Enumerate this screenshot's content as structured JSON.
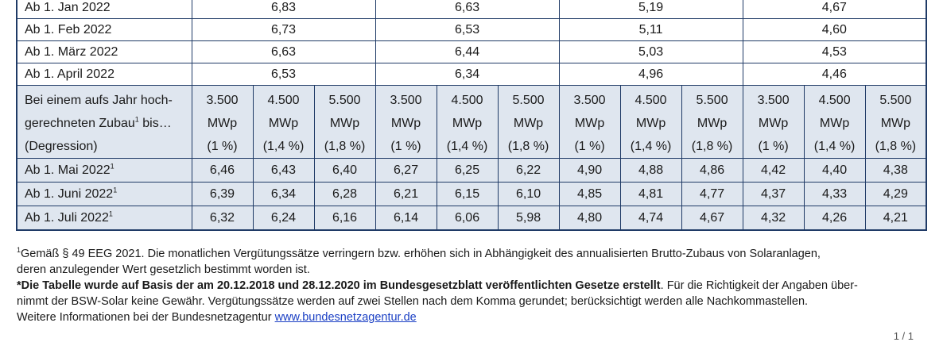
{
  "table": {
    "monthly_rows": [
      {
        "label": "Ab 1. Jan 2022",
        "values": [
          "6,83",
          "6,63",
          "5,19",
          "4,67"
        ]
      },
      {
        "label": "Ab 1. Feb 2022",
        "values": [
          "6,73",
          "6,53",
          "5,11",
          "4,60"
        ]
      },
      {
        "label": "Ab 1. März 2022",
        "values": [
          "6,63",
          "6,44",
          "5,03",
          "4,53"
        ]
      },
      {
        "label": "Ab 1. April 2022",
        "values": [
          "6,53",
          "6,34",
          "4,96",
          "4,46"
        ]
      }
    ],
    "header": {
      "label_line1": "Bei einem aufs Jahr hoch-",
      "label_line2_pre": "gerechneten Zubau",
      "label_line2_sup": "1",
      "label_line2_post": " bis…",
      "label_line3": "(Degression)",
      "groups": [
        [
          {
            "cap": "3.500",
            "unit": "MWp",
            "deg": "(1 %)"
          },
          {
            "cap": "4.500",
            "unit": "MWp",
            "deg": "(1,4 %)"
          },
          {
            "cap": "5.500",
            "unit": "MWp",
            "deg": "(1,8 %)"
          }
        ],
        [
          {
            "cap": "3.500",
            "unit": "MWp",
            "deg": "(1 %)"
          },
          {
            "cap": "4.500",
            "unit": "MWp",
            "deg": "(1,4 %)"
          },
          {
            "cap": "5.500",
            "unit": "MWp",
            "deg": "(1,8 %)"
          }
        ],
        [
          {
            "cap": "3.500",
            "unit": "MWp",
            "deg": "(1 %)"
          },
          {
            "cap": "4.500",
            "unit": "MWp",
            "deg": "(1,4 %)"
          },
          {
            "cap": "5.500",
            "unit": "MWp",
            "deg": "(1,8 %)"
          }
        ],
        [
          {
            "cap": "3.500",
            "unit": "MWp",
            "deg": "(1 %)"
          },
          {
            "cap": "4.500",
            "unit": "MWp",
            "deg": "(1,4 %)"
          },
          {
            "cap": "5.500",
            "unit": "MWp",
            "deg": "(1,8 %)"
          }
        ]
      ]
    },
    "step_rows": [
      {
        "label": "Ab 1. Mai 2022",
        "sup": "1",
        "values": [
          "6,46",
          "6,43",
          "6,40",
          "6,27",
          "6,25",
          "6,22",
          "4,90",
          "4,88",
          "4,86",
          "4,42",
          "4,40",
          "4,38"
        ]
      },
      {
        "label": "Ab 1. Juni 2022",
        "sup": "1",
        "values": [
          "6,39",
          "6,34",
          "6,28",
          "6,21",
          "6,15",
          "6,10",
          "4,85",
          "4,81",
          "4,77",
          "4,37",
          "4,33",
          "4,29"
        ]
      },
      {
        "label": "Ab 1. Juli 2022",
        "sup": "1",
        "values": [
          "6,32",
          "6,24",
          "6,16",
          "6,14",
          "6,06",
          "5,98",
          "4,80",
          "4,74",
          "4,67",
          "4,32",
          "4,26",
          "4,21"
        ]
      }
    ]
  },
  "footnotes": {
    "fn1_mark": "1",
    "fn1_line1": "Gemäß § 49 EEG 2021. Die monatlichen Vergütungssätze verringern bzw. erhöhen sich in Abhängigkeit des annualisierten Brutto-Zubaus von Solaranlagen,",
    "fn1_line2": "deren anzulegender Wert gesetzlich bestimmt worden ist.",
    "note_bold": "*Die Tabelle wurde auf Basis der am 20.12.2018 und 28.12.2020 im Bundesgesetzblatt veröffentlichten Gesetze erstellt",
    "note_rest_line1": ". Für die Richtigkeit der Angaben über-",
    "note_line2": "nimmt der BSW-Solar keine Gewähr. Vergütungssätze werden auf zwei Stellen nach dem Komma gerundet; berücksichtigt werden alle Nachkommastellen.",
    "more_info_text": "Weitere Informationen bei der Bundesnetzagentur ",
    "more_info_link": "www.bundesnetzagentur.de"
  },
  "page_indicator": "1 / 1",
  "colors": {
    "border": "#1f3a66",
    "shaded_row": "#dfe6ef",
    "link": "#1a3fc4"
  }
}
